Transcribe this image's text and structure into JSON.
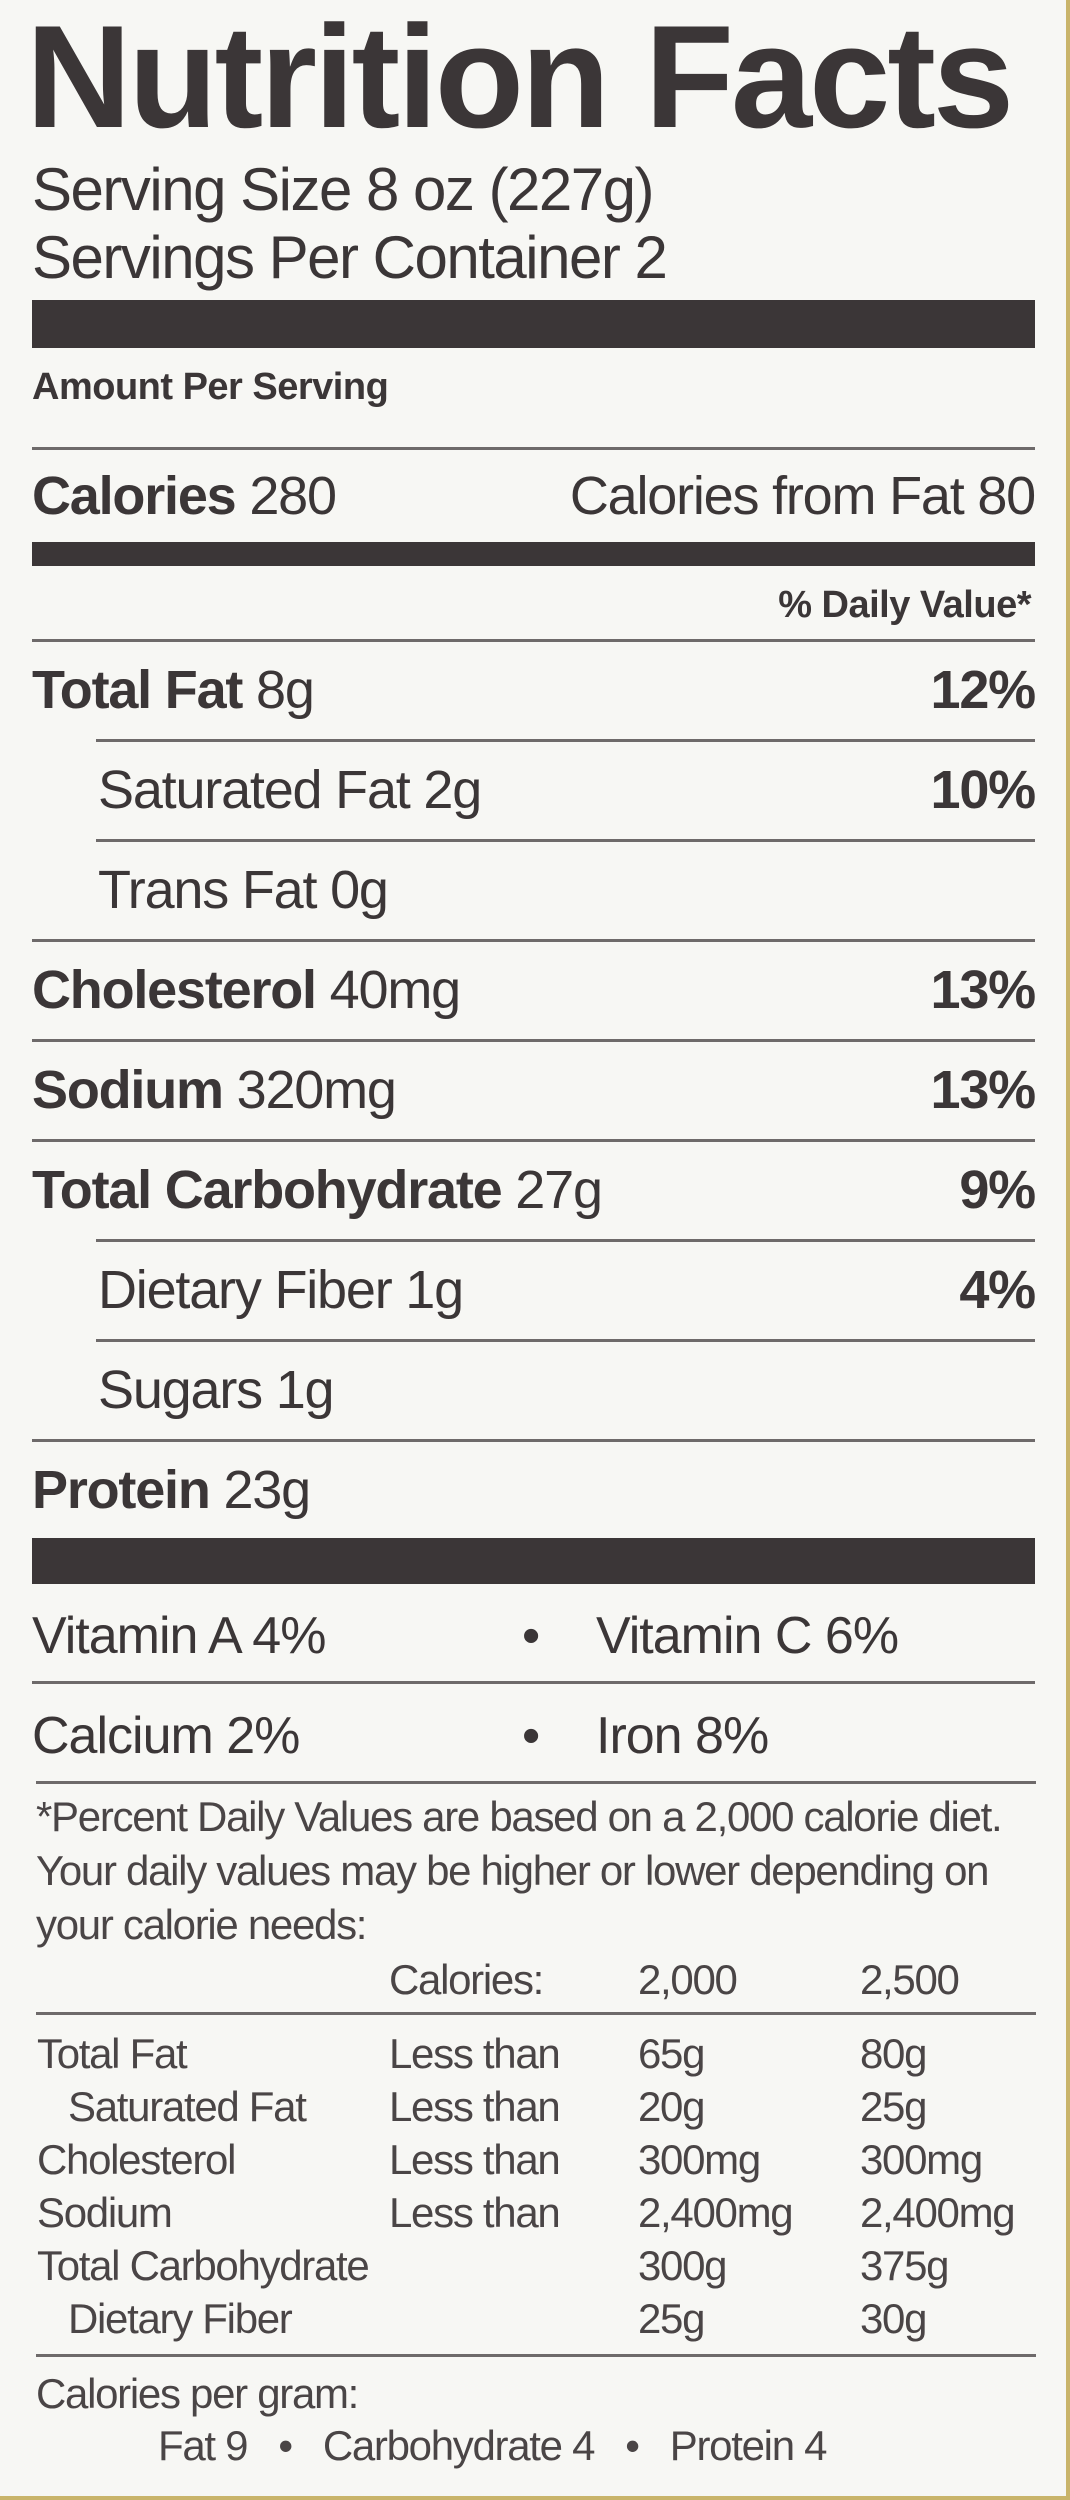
{
  "title": "Nutrition Facts",
  "serving_size": "Serving Size 8 oz (227g)",
  "servings_per_container": "Servings Per Container 2",
  "amount_per_serving": "Amount Per Serving",
  "calories": {
    "label": "Calories",
    "value": "280",
    "from_fat": "Calories from Fat 80"
  },
  "daily_value_header": "% Daily Value*",
  "nutrients": [
    {
      "name": "Total Fat",
      "amount": "8g",
      "dv": "12%",
      "bold": true,
      "indent": false,
      "rule": "indent"
    },
    {
      "name": "Saturated Fat",
      "amount": "2g",
      "dv": "10%",
      "bold": false,
      "indent": true,
      "rule": "indent"
    },
    {
      "name": "Trans Fat",
      "amount": "0g",
      "dv": "",
      "bold": false,
      "indent": true,
      "rule": "full"
    },
    {
      "name": "Cholesterol",
      "amount": "40mg",
      "dv": "13%",
      "bold": true,
      "indent": false,
      "rule": "full"
    },
    {
      "name": "Sodium",
      "amount": "320mg",
      "dv": "13%",
      "bold": true,
      "indent": false,
      "rule": "full"
    },
    {
      "name": "Total Carbohydrate",
      "amount": "27g",
      "dv": "9%",
      "bold": true,
      "indent": false,
      "rule": "indent"
    },
    {
      "name": "Dietary Fiber",
      "amount": "1g",
      "dv": "4%",
      "bold": false,
      "indent": true,
      "rule": "indent"
    },
    {
      "name": "Sugars",
      "amount": "1g",
      "dv": "",
      "bold": false,
      "indent": true,
      "rule": "full"
    },
    {
      "name": "Protein",
      "amount": "23g",
      "dv": "",
      "bold": true,
      "indent": false,
      "rule": "none"
    }
  ],
  "vitamins": [
    [
      "Vitamin A 4%",
      "Vitamin C 6%"
    ],
    [
      "Calcium 2%",
      "Iron 8%"
    ]
  ],
  "bullet": "•",
  "footnote": "*Percent Daily Values are based on a 2,000 calorie diet. Your daily values may be higher or lower depending on your calorie needs:",
  "reference_table": {
    "header": [
      "Calories:",
      "2,000",
      "2,500"
    ],
    "rows": [
      {
        "name": "Total Fat",
        "qualifier": "Less than",
        "v2000": "65g",
        "v2500": "80g",
        "indent": false
      },
      {
        "name": "Saturated Fat",
        "qualifier": "Less than",
        "v2000": "20g",
        "v2500": "25g",
        "indent": true
      },
      {
        "name": "Cholesterol",
        "qualifier": "Less than",
        "v2000": "300mg",
        "v2500": "300mg",
        "indent": false
      },
      {
        "name": "Sodium",
        "qualifier": "Less than",
        "v2000": "2,400mg",
        "v2500": "2,400mg",
        "indent": false
      },
      {
        "name": "Total Carbohydrate",
        "qualifier": "",
        "v2000": "300g",
        "v2500": "375g",
        "indent": false
      },
      {
        "name": "Dietary Fiber",
        "qualifier": "",
        "v2000": "25g",
        "v2500": "30g",
        "indent": true
      }
    ]
  },
  "calories_per_gram": {
    "label": "Calories per gram:",
    "fat": "Fat 9",
    "carbohydrate": "Carbohydrate 4",
    "protein": "Protein 4"
  },
  "colors": {
    "text": "#3b3637",
    "background": "#f7f7f4",
    "edge": "#c9b46a"
  }
}
